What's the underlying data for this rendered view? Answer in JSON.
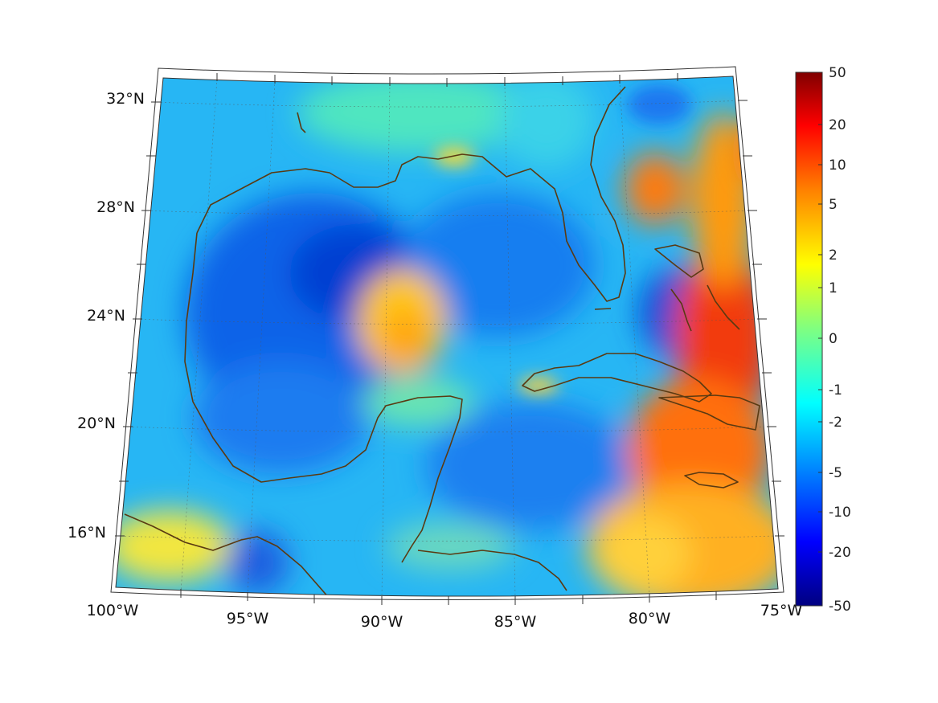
{
  "map": {
    "region": "Gulf of Mexico and Caribbean",
    "projection_style": "conic",
    "lat_labels": [
      "32°N",
      "28°N",
      "24°N",
      "20°N",
      "16°N"
    ],
    "lon_labels": [
      "100°W",
      "95°W",
      "90°W",
      "85°W",
      "80°W",
      "75°W"
    ],
    "grid": "dotted",
    "coastline_color": "#5a3a12",
    "colormap": "jet",
    "field_features": [
      "warm (positive) anomaly east of Florida/Bahamas and south of Hispaniola",
      "warm patch central Gulf near 24°N 90°W",
      "cold (negative) anomaly over most of the Gulf of Mexico"
    ]
  },
  "colorbar": {
    "ticks": [
      "50",
      "20",
      "10",
      "5",
      "2",
      "1",
      "0",
      "-1",
      "-2",
      "-5",
      "-10",
      "-20",
      "-50"
    ],
    "colors": [
      "#800000",
      "#ff0000",
      "#ff8000",
      "#ffff00",
      "#80ff80",
      "#00ffff",
      "#0080ff",
      "#0000ff",
      "#000080"
    ]
  }
}
